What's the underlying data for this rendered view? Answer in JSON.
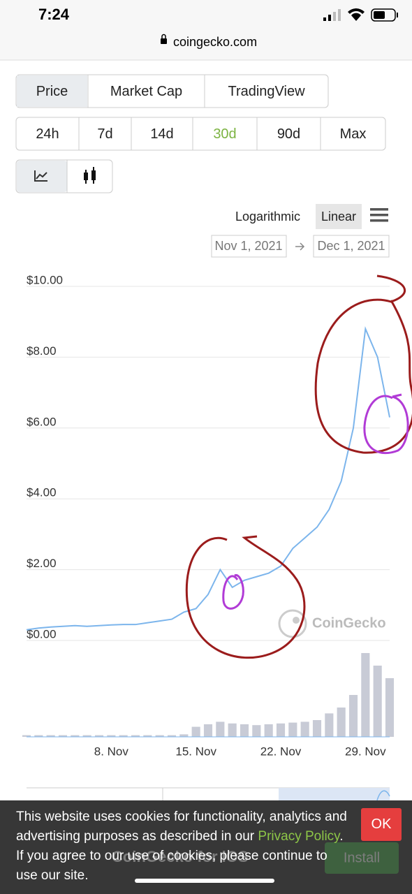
{
  "status_bar": {
    "time": "7:24"
  },
  "address_bar": {
    "url": "coingecko.com"
  },
  "tabs": [
    "Price",
    "Market Cap",
    "TradingView"
  ],
  "ranges": [
    "24h",
    "7d",
    "14d",
    "30d",
    "90d",
    "Max"
  ],
  "scale_options": [
    "Logarithmic",
    "Linear"
  ],
  "date_range": {
    "from": "Nov 1, 2021",
    "to": "Dec 1, 2021"
  },
  "watermark": "CoinGecko",
  "app_banner": {
    "title": "CoinGecko for iOS",
    "button": "Install"
  },
  "cookie_banner": {
    "text_before": "This website uses cookies for functionality, analytics and advertising purposes as described in our ",
    "link": "Privacy Policy",
    "text_after": ". If you agree to our use of cookies, please continue to use our site.",
    "button": "OK"
  },
  "chart_data": {
    "type": "line",
    "color": "#7cb5ec",
    "grid": true,
    "categories": [
      null,
      null,
      null,
      null,
      null,
      null,
      null,
      "8. Nov",
      null,
      null,
      null,
      null,
      null,
      null,
      "15. Nov",
      null,
      null,
      null,
      null,
      null,
      null,
      "22. Nov",
      null,
      null,
      null,
      null,
      null,
      null,
      "29. Nov",
      null,
      null
    ],
    "values": [
      0.3,
      0.35,
      0.38,
      0.4,
      0.42,
      0.4,
      0.42,
      0.44,
      0.45,
      0.45,
      0.5,
      0.55,
      0.6,
      0.8,
      0.9,
      1.3,
      2.0,
      1.5,
      1.7,
      1.8,
      1.9,
      2.1,
      2.6,
      2.9,
      3.2,
      3.7,
      4.5,
      6.0,
      8.8,
      8.0,
      6.3
    ],
    "volume": [
      2,
      2,
      2,
      2,
      2,
      2,
      2,
      2,
      2,
      2,
      2,
      2,
      2,
      3,
      12,
      15,
      18,
      16,
      15,
      14,
      15,
      16,
      17,
      18,
      20,
      28,
      35,
      50,
      100,
      85,
      70
    ],
    "volume_color": "#c8cbd6",
    "ylim": [
      0,
      10
    ],
    "yticks": [
      {
        "value": 0,
        "label": "$0.00"
      },
      {
        "value": 2,
        "label": "$2.00"
      },
      {
        "value": 4,
        "label": "$4.00"
      },
      {
        "value": 6,
        "label": "$6.00"
      },
      {
        "value": 8,
        "label": "$8.00"
      },
      {
        "value": 10,
        "label": "$10.00"
      }
    ]
  }
}
